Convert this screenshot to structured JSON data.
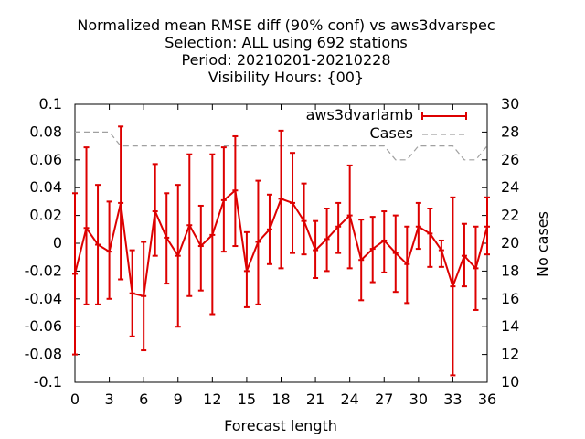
{
  "chart_data": {
    "type": "line",
    "title_lines": [
      "Normalized mean RMSE diff (90% conf) vs aws3dvarspec",
      "Selection: ALL using   692 stations",
      "Period: 20210201-20210228",
      "Visibility   Hours: {00}"
    ],
    "xlabel": "Forecast length",
    "ylabel": "",
    "y2label": "No cases",
    "xlim": [
      0,
      36
    ],
    "ylim": [
      -0.1,
      0.1
    ],
    "y2lim": [
      10,
      30
    ],
    "x_ticks": [
      "0",
      "3",
      "6",
      "9",
      "12",
      "15",
      "18",
      "21",
      "24",
      "27",
      "30",
      "33",
      "36"
    ],
    "y_ticks": [
      "-0.1",
      "-0.08",
      "-0.06",
      "-0.04",
      "-0.02",
      "0",
      "0.02",
      "0.04",
      "0.06",
      "0.08",
      "0.1"
    ],
    "y2_ticks": [
      "10",
      "12",
      "14",
      "16",
      "18",
      "20",
      "22",
      "24",
      "26",
      "28",
      "30"
    ],
    "grid": false,
    "legend_position": "top-right",
    "x": [
      0,
      1,
      2,
      3,
      4,
      5,
      6,
      7,
      8,
      9,
      10,
      11,
      12,
      13,
      14,
      15,
      16,
      17,
      18,
      19,
      20,
      21,
      22,
      23,
      24,
      25,
      26,
      27,
      28,
      29,
      30,
      31,
      32,
      33,
      34,
      35,
      36
    ],
    "series": [
      {
        "name": "aws3dvarlamb",
        "color": "#dd0000",
        "style": "line-errorbars",
        "values": [
          -0.022,
          0.011,
          -0.001,
          -0.006,
          0.029,
          -0.036,
          -0.038,
          0.023,
          0.004,
          -0.009,
          0.013,
          -0.002,
          0.006,
          0.031,
          0.038,
          -0.02,
          0.001,
          0.01,
          0.032,
          0.029,
          0.016,
          -0.005,
          0.003,
          0.012,
          0.02,
          -0.012,
          -0.004,
          0.002,
          -0.007,
          -0.015,
          0.012,
          0.007,
          -0.005,
          -0.031,
          -0.009,
          -0.018,
          0.012
        ],
        "err_low": [
          -0.08,
          -0.044,
          -0.044,
          -0.04,
          -0.026,
          -0.067,
          -0.077,
          -0.009,
          -0.029,
          -0.06,
          -0.038,
          -0.034,
          -0.051,
          -0.006,
          -0.002,
          -0.046,
          -0.044,
          -0.015,
          -0.018,
          -0.007,
          -0.008,
          -0.025,
          -0.02,
          -0.007,
          -0.018,
          -0.041,
          -0.028,
          -0.021,
          -0.035,
          -0.043,
          -0.004,
          -0.017,
          -0.017,
          -0.095,
          -0.031,
          -0.048,
          -0.008
        ],
        "err_high": [
          0.036,
          0.069,
          0.042,
          0.03,
          0.084,
          -0.005,
          0.001,
          0.057,
          0.036,
          0.042,
          0.064,
          0.027,
          0.064,
          0.069,
          0.077,
          0.008,
          0.045,
          0.035,
          0.081,
          0.065,
          0.043,
          0.016,
          0.025,
          0.029,
          0.056,
          0.017,
          0.019,
          0.023,
          0.02,
          0.012,
          0.029,
          0.025,
          0.002,
          0.033,
          0.014,
          0.012,
          0.033
        ]
      },
      {
        "name": "Cases",
        "color": "#a0a0a0",
        "style": "dashed",
        "axis": "y2",
        "values": [
          28,
          28,
          28,
          28,
          27,
          27,
          27,
          27,
          27,
          27,
          27,
          27,
          27,
          27,
          27,
          27,
          27,
          27,
          27,
          27,
          27,
          27,
          27,
          27,
          27,
          27,
          27,
          27,
          26,
          26,
          27,
          27,
          27,
          27,
          26,
          26,
          27
        ]
      }
    ]
  }
}
